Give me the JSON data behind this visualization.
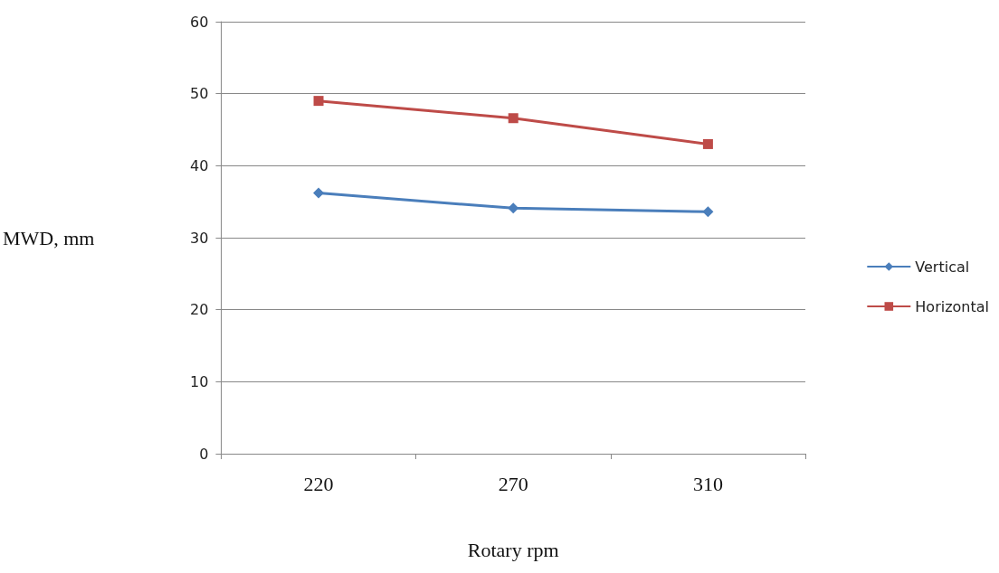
{
  "chart_data": {
    "type": "line",
    "xlabel": "Rotary rpm",
    "ylabel": "MWD, mm",
    "categories": [
      "220",
      "270",
      "310"
    ],
    "series": [
      {
        "name": "Vertical",
        "color": "#4a7ebb",
        "marker": "diamond",
        "values": [
          36.2,
          34.1,
          33.6
        ]
      },
      {
        "name": "Horizontal",
        "color": "#be4b48",
        "marker": "square",
        "values": [
          49,
          46.6,
          43
        ]
      }
    ],
    "ylim": [
      0,
      60
    ],
    "yticks": [
      0,
      10,
      20,
      30,
      40,
      50,
      60
    ],
    "grid": "y",
    "legend": "right",
    "line_style": "solid"
  }
}
